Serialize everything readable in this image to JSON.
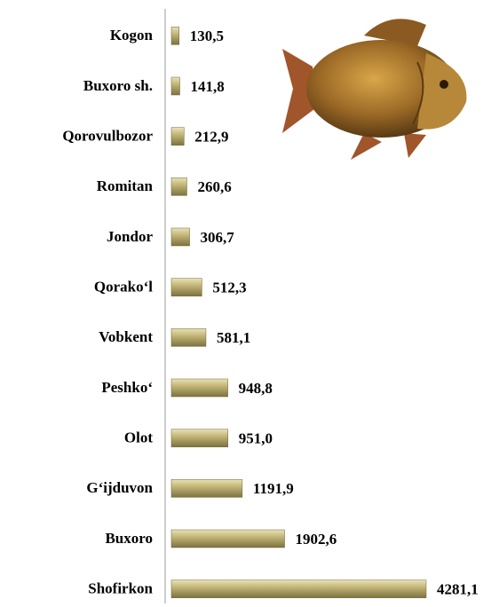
{
  "chart_data": {
    "type": "bar",
    "orientation": "horizontal",
    "categories": [
      "Kogon",
      "Buxoro sh.",
      "Qorovulbozor",
      "Romitan",
      "Jondor",
      "Qorako‘l",
      "Vobkent",
      "Peshko‘",
      "Olot",
      "G‘ijduvon",
      "Buxoro",
      "Shofirkon"
    ],
    "values": [
      130.5,
      141.8,
      212.9,
      260.6,
      306.7,
      512.3,
      581.1,
      948.8,
      951.0,
      1191.9,
      1902.6,
      4281.1
    ],
    "value_labels": [
      "130,5",
      "141,8",
      "212,9",
      "260,6",
      "306,7",
      "512,3",
      "581,1",
      "948,8",
      "951,0",
      "1191,9",
      "1902,6",
      "4281,1"
    ],
    "color": "#a99b5c"
  }
}
